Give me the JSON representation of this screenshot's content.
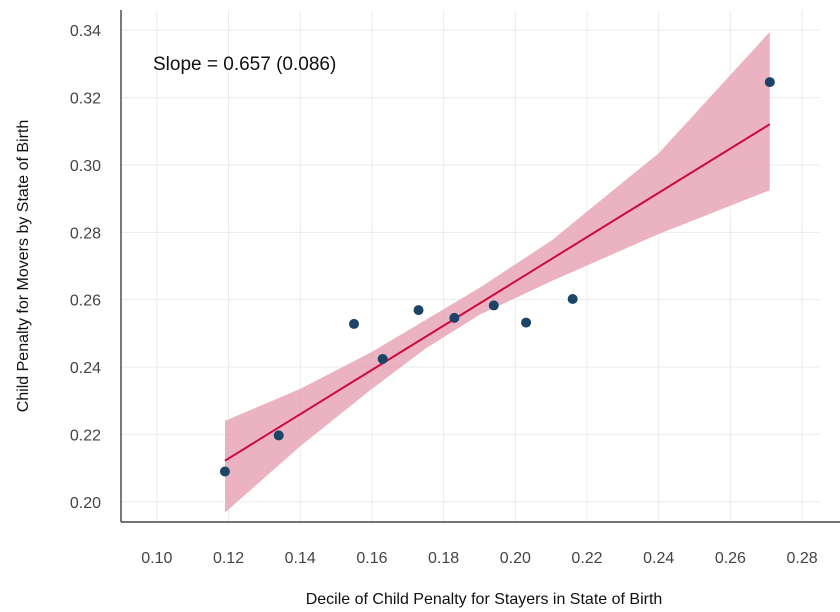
{
  "chart_data": {
    "type": "scatter",
    "xlabel": "Decile of Child Penalty for Stayers in State of Birth",
    "ylabel": "Child Penalty for Movers by State of Birth",
    "annotation": "Slope = 0.657 (0.086)",
    "xlim": [
      0.09,
      0.285
    ],
    "ylim": [
      0.194,
      0.346
    ],
    "x_ticks": [
      "0.10",
      "0.12",
      "0.14",
      "0.16",
      "0.18",
      "0.20",
      "0.22",
      "0.24",
      "0.26",
      "0.28"
    ],
    "y_ticks": [
      "0.20",
      "0.22",
      "0.24",
      "0.26",
      "0.28",
      "0.30",
      "0.32",
      "0.34"
    ],
    "grid": true,
    "points": [
      {
        "x": 0.119,
        "y": 0.209
      },
      {
        "x": 0.134,
        "y": 0.2197
      },
      {
        "x": 0.155,
        "y": 0.2528
      },
      {
        "x": 0.163,
        "y": 0.2424
      },
      {
        "x": 0.173,
        "y": 0.2569
      },
      {
        "x": 0.183,
        "y": 0.2546
      },
      {
        "x": 0.194,
        "y": 0.2583
      },
      {
        "x": 0.203,
        "y": 0.2532
      },
      {
        "x": 0.216,
        "y": 0.2602
      },
      {
        "x": 0.271,
        "y": 0.3246
      }
    ],
    "fit": {
      "x": [
        0.119,
        0.271
      ],
      "y": [
        0.2122,
        0.3121
      ]
    },
    "confidence_band": {
      "x": [
        0.119,
        0.14,
        0.16,
        0.175,
        0.19,
        0.21,
        0.24,
        0.271
      ],
      "lower": [
        0.1968,
        0.2165,
        0.2335,
        0.2455,
        0.2555,
        0.2655,
        0.2795,
        0.2925
      ],
      "upper": [
        0.224,
        0.2335,
        0.2445,
        0.254,
        0.2635,
        0.2775,
        0.3035,
        0.3395
      ]
    },
    "colors": {
      "point": "#1c4466",
      "fit_line": "#cc0a3d",
      "band": "#e8a5b6",
      "grid": "#ebebeb",
      "axis": "#222222"
    }
  }
}
